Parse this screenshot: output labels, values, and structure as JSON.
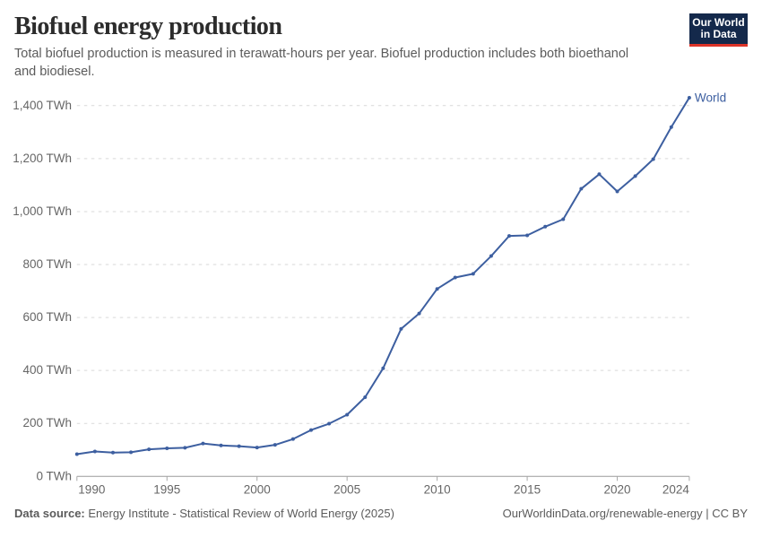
{
  "header": {
    "title": "Biofuel energy production",
    "subtitle": "Total biofuel production is measured in terawatt-hours per year. Biofuel production includes both bioethanol and biodiesel."
  },
  "logo": {
    "line1": "Our World",
    "line2": "in Data",
    "bg_color": "#14294b",
    "accent_color": "#dc3328"
  },
  "chart_data": {
    "type": "line",
    "title": "Biofuel energy production",
    "subtitle": "Total biofuel production is measured in terawatt-hours per year. Biofuel production includes both bioethanol and biodiesel.",
    "unit": "TWh",
    "xlabel": "",
    "ylabel": "",
    "xlim": [
      1990,
      2024
    ],
    "ylim": [
      0,
      1400
    ],
    "grid": "horizontal-dashed",
    "legend_position": "end-of-line-label",
    "x_ticks": [
      1990,
      1995,
      2000,
      2005,
      2010,
      2015,
      2020,
      2024
    ],
    "y_ticks": [
      0,
      200,
      400,
      600,
      800,
      1000,
      1200,
      1400
    ],
    "y_tick_labels": [
      "0 TWh",
      "200 TWh",
      "400 TWh",
      "600 TWh",
      "800 TWh",
      "1,000 TWh",
      "1,200 TWh",
      "1,400 TWh"
    ],
    "series": [
      {
        "name": "World",
        "color": "#3d5fa0",
        "years": [
          1990,
          1991,
          1992,
          1993,
          1994,
          1995,
          1996,
          1997,
          1998,
          1999,
          2000,
          2001,
          2002,
          2003,
          2004,
          2005,
          2006,
          2007,
          2008,
          2009,
          2010,
          2011,
          2012,
          2013,
          2014,
          2015,
          2016,
          2017,
          2018,
          2019,
          2020,
          2021,
          2022,
          2023,
          2024
        ],
        "values": [
          84,
          94,
          90,
          91,
          102,
          106,
          108,
          124,
          117,
          114,
          109,
          119,
          141,
          175,
          199,
          233,
          299,
          408,
          557,
          615,
          708,
          751,
          765,
          832,
          908,
          910,
          943,
          971,
          1086,
          1141,
          1076,
          1134,
          1198,
          1319,
          1430
        ]
      }
    ]
  },
  "axis_style": {
    "grid_color": "#d9d9d9",
    "axis_color": "#9c9c9c",
    "tick_color": "#a8a8a8",
    "label_color": "#666666"
  },
  "footer": {
    "data_source_label": "Data source:",
    "data_source_value": "Energy Institute - Statistical Review of World Energy (2025)",
    "attribution": "OurWorldinData.org/renewable-energy | CC BY"
  }
}
